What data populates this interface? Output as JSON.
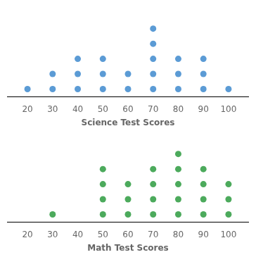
{
  "chart_data": [
    {
      "type": "dot",
      "x": [
        20,
        30,
        40,
        50,
        60,
        70,
        80,
        90,
        100
      ],
      "values": [
        1,
        2,
        3,
        3,
        2,
        5,
        3,
        3,
        1
      ],
      "color": "#5b9bd5",
      "xlabel": "Science Test Scores",
      "xlim": [
        12,
        108
      ],
      "xticks": [
        20,
        30,
        40,
        50,
        60,
        70,
        80,
        90,
        100
      ],
      "ylim": [
        0,
        6
      ],
      "grid": false,
      "tick_labels": "x"
    },
    {
      "type": "dot",
      "x": [
        30,
        50,
        60,
        70,
        80,
        90,
        100
      ],
      "values": [
        1,
        4,
        3,
        4,
        5,
        4,
        3
      ],
      "color": "#4caa5c",
      "xlabel": "Math Test Scores",
      "xlim": [
        12,
        108
      ],
      "xticks": [
        20,
        30,
        40,
        50,
        60,
        70,
        80,
        90,
        100
      ],
      "ylim": [
        0,
        6
      ],
      "grid": false,
      "tick_labels": "x"
    }
  ]
}
